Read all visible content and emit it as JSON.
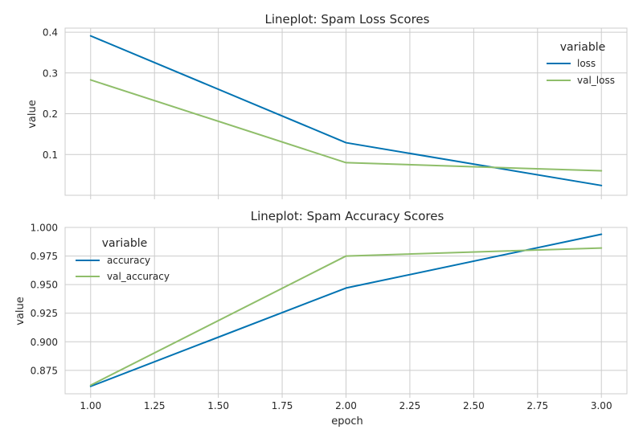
{
  "chart_data": [
    {
      "type": "line",
      "title": "Lineplot: Spam Loss Scores",
      "xlabel": "",
      "ylabel": "value",
      "x": [
        1.0,
        2.0,
        3.0
      ],
      "xlim": [
        0.9,
        3.1
      ],
      "ylim": [
        0.0,
        0.41
      ],
      "xticks": [
        1.0,
        1.25,
        1.5,
        1.75,
        2.0,
        2.25,
        2.5,
        2.75,
        3.0
      ],
      "yticks": [
        0.1,
        0.2,
        0.3,
        0.4
      ],
      "ytick_labels": [
        "0.1",
        "0.2",
        "0.3",
        "0.4"
      ],
      "show_xtick_labels": false,
      "grid": true,
      "legend_title": "variable",
      "legend_position": "top-right",
      "series": [
        {
          "name": "loss",
          "color": "#0173b2",
          "values": [
            0.391,
            0.129,
            0.024
          ]
        },
        {
          "name": "val_loss",
          "color": "#8fbe6a",
          "values": [
            0.283,
            0.08,
            0.06
          ]
        }
      ]
    },
    {
      "type": "line",
      "title": "Lineplot: Spam Accuracy Scores",
      "xlabel": "epoch",
      "ylabel": "value",
      "x": [
        1.0,
        2.0,
        3.0
      ],
      "xlim": [
        0.9,
        3.1
      ],
      "ylim": [
        0.8545,
        1.0
      ],
      "xticks": [
        1.0,
        1.25,
        1.5,
        1.75,
        2.0,
        2.25,
        2.5,
        2.75,
        3.0
      ],
      "xtick_labels": [
        "1.00",
        "1.25",
        "1.50",
        "1.75",
        "2.00",
        "2.25",
        "2.50",
        "2.75",
        "3.00"
      ],
      "yticks": [
        0.875,
        0.9,
        0.925,
        0.95,
        0.975,
        1.0
      ],
      "ytick_labels": [
        "0.875",
        "0.900",
        "0.925",
        "0.950",
        "0.975",
        "1.000"
      ],
      "show_xtick_labels": true,
      "grid": true,
      "legend_title": "variable",
      "legend_position": "top-left",
      "series": [
        {
          "name": "accuracy",
          "color": "#0173b2",
          "values": [
            0.861,
            0.947,
            0.994
          ]
        },
        {
          "name": "val_accuracy",
          "color": "#8fbe6a",
          "values": [
            0.862,
            0.975,
            0.982
          ]
        }
      ]
    }
  ]
}
